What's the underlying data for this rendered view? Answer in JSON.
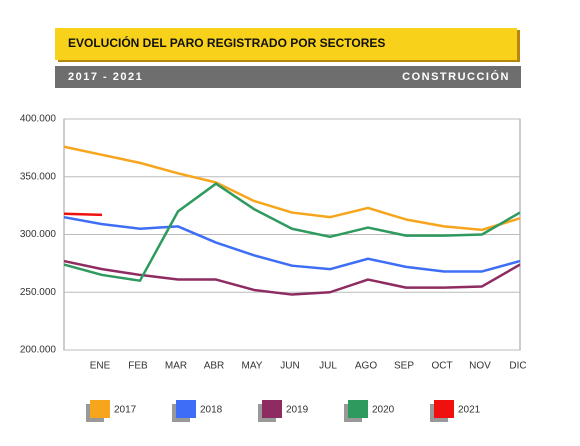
{
  "chart_data": {
    "type": "line",
    "title": "EVOLUCIÓN DEL PARO REGISTRADO POR SECTORES",
    "subtitle": "2017 - 2021",
    "sector": "CONSTRUCCIÓN",
    "categories": [
      null,
      "ENE",
      "FEB",
      "MAR",
      "ABR",
      "MAY",
      "JUN",
      "JUL",
      "AGO",
      "SEP",
      "OCT",
      "NOV",
      "DIC"
    ],
    "series": [
      {
        "name": "2017",
        "color": "#f7a51c",
        "values": [
          376000,
          369000,
          362000,
          353000,
          345000,
          329000,
          319000,
          315000,
          323000,
          313000,
          307000,
          304000,
          314000
        ]
      },
      {
        "name": "2018",
        "color": "#3d6ef5",
        "values": [
          315000,
          309000,
          305000,
          307000,
          293000,
          282000,
          273000,
          270000,
          279000,
          272000,
          268000,
          268000,
          277000
        ]
      },
      {
        "name": "2019",
        "color": "#8e2c62",
        "values": [
          277000,
          270000,
          265000,
          261000,
          261000,
          252000,
          248000,
          250000,
          261000,
          254000,
          254000,
          255000,
          274000
        ]
      },
      {
        "name": "2020",
        "color": "#2e9a5e",
        "values": [
          274000,
          265000,
          260000,
          320000,
          344000,
          322000,
          305000,
          298000,
          306000,
          299000,
          299000,
          300000,
          319000
        ]
      },
      {
        "name": "2021",
        "color": "#f01010",
        "values": [
          318000,
          317000,
          null,
          null,
          null,
          null,
          null,
          null,
          null,
          null,
          null,
          null,
          null
        ]
      }
    ],
    "ylim": [
      200000,
      400000
    ],
    "yticks": [
      {
        "value": 200000,
        "label": "200.000"
      },
      {
        "value": 250000,
        "label": "250.000"
      },
      {
        "value": 300000,
        "label": "300.000"
      },
      {
        "value": 350000,
        "label": "350.000"
      },
      {
        "value": 400000,
        "label": "400.000"
      }
    ],
    "grid": true,
    "legend": "bottom"
  }
}
